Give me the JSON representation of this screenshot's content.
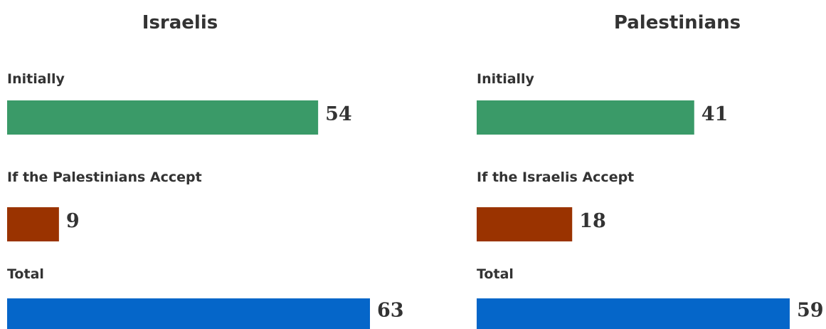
{
  "chart_data": [
    {
      "type": "bar",
      "orientation": "horizontal",
      "title": "Israelis",
      "categories": [
        "Initially",
        "If the Palestinians Accept",
        "Total"
      ],
      "values": [
        54,
        9,
        63
      ],
      "colors": [
        "#3a9a68",
        "#9a3300",
        "#0566c9"
      ],
      "xlim": [
        0,
        63
      ]
    },
    {
      "type": "bar",
      "orientation": "horizontal",
      "title": "Palestinians",
      "categories": [
        "Initially",
        "If the Israelis Accept",
        "Total"
      ],
      "values": [
        41,
        18,
        59
      ],
      "colors": [
        "#3a9a68",
        "#9a3300",
        "#0566c9"
      ],
      "xlim": [
        0,
        59
      ]
    }
  ]
}
